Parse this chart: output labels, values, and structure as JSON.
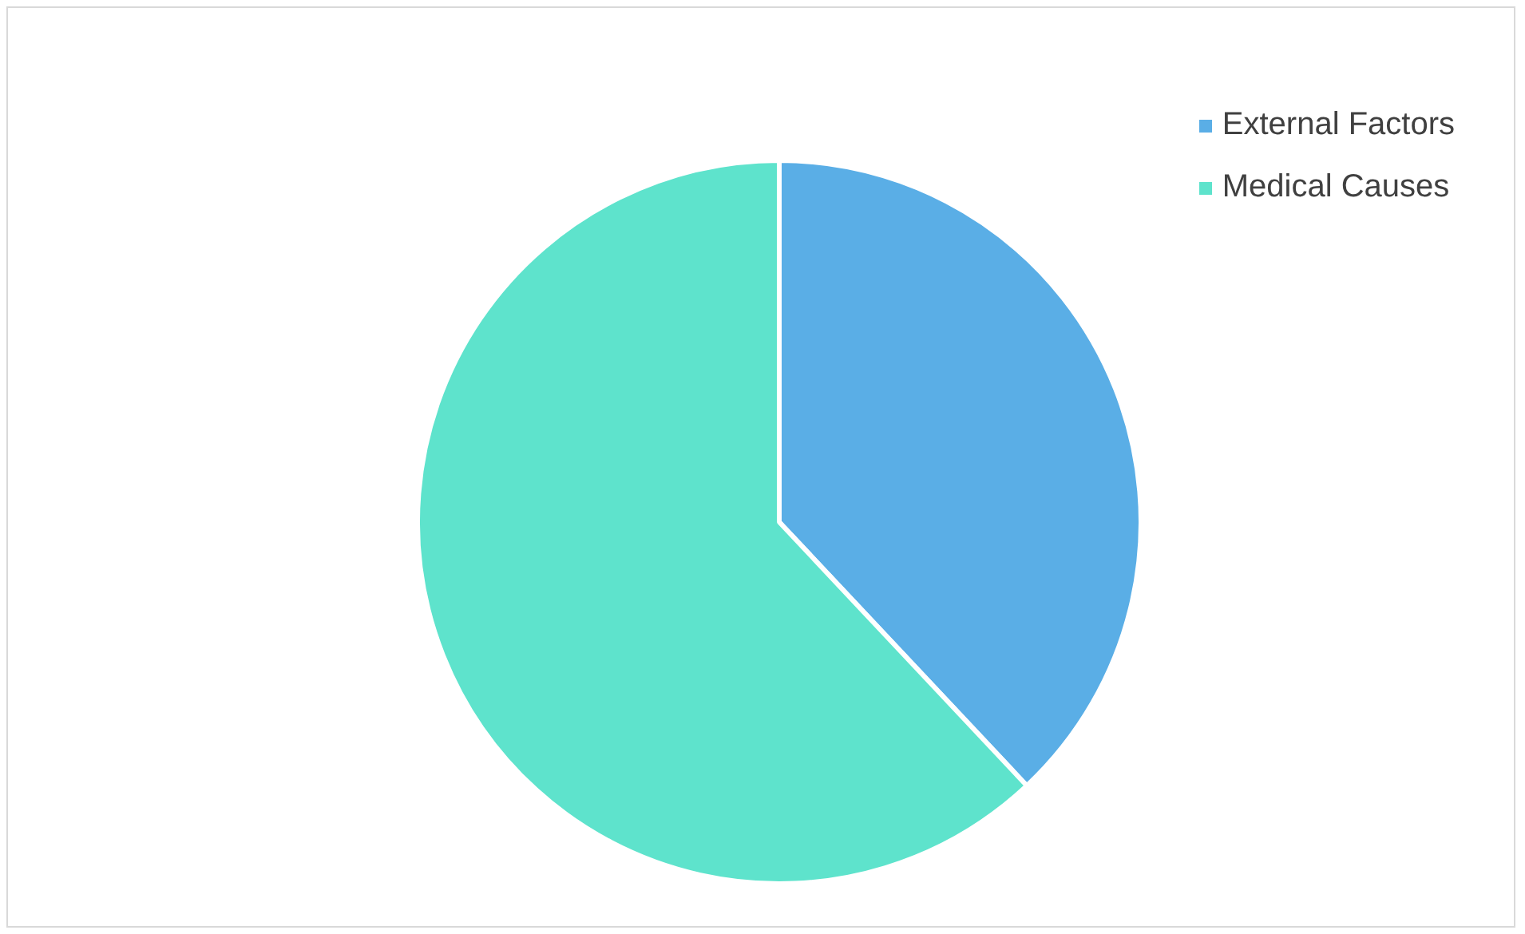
{
  "chart_data": {
    "type": "pie",
    "categories": [
      "External Factors",
      "Medical Causes"
    ],
    "values": [
      38,
      62
    ],
    "colors": [
      "#5aaee6",
      "#5ee3cc"
    ],
    "legend": "top right"
  }
}
